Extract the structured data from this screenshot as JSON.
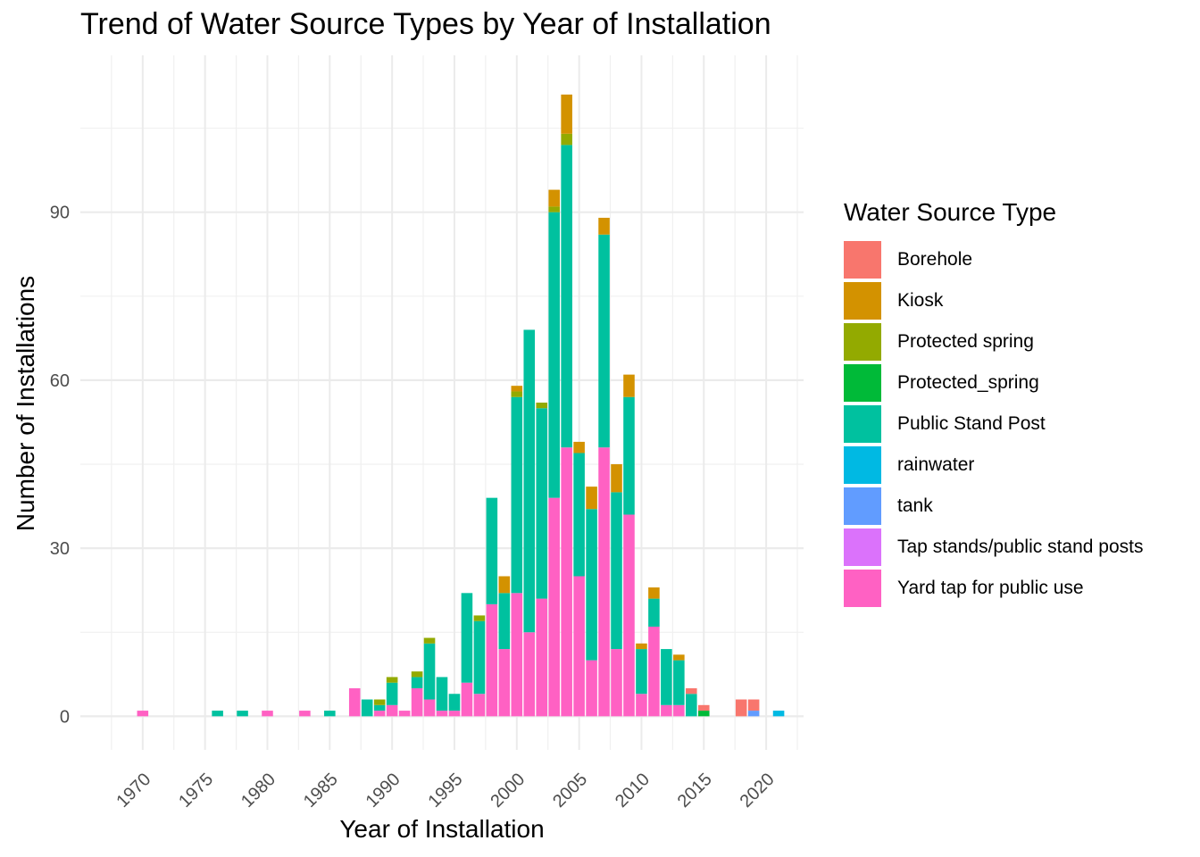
{
  "chart_data": {
    "type": "bar",
    "stacked": true,
    "title": "Trend of Water Source Types by Year of Installation",
    "xlabel": "Year of Installation",
    "ylabel": "Number of Installations",
    "xlim": [
      1965,
      2023
    ],
    "ylim": [
      -6,
      118
    ],
    "x_ticks": [
      1970,
      1975,
      1980,
      1985,
      1990,
      1995,
      2000,
      2005,
      2010,
      2015,
      2020
    ],
    "y_ticks": [
      0,
      30,
      60,
      90
    ],
    "grid": true,
    "legend": {
      "title": "Water Source Type",
      "position": "right"
    },
    "series": [
      {
        "name": "Borehole",
        "color": "#F8766D",
        "points": [
          [
            2014,
            1
          ],
          [
            2015,
            1
          ],
          [
            2018,
            3
          ],
          [
            2019,
            2
          ]
        ]
      },
      {
        "name": "Kiosk",
        "color": "#D39200",
        "points": [
          [
            1999,
            3
          ],
          [
            2000,
            1
          ],
          [
            2003,
            3
          ],
          [
            2004,
            7
          ],
          [
            2005,
            2
          ],
          [
            2006,
            4
          ],
          [
            2007,
            3
          ],
          [
            2008,
            5
          ],
          [
            2009,
            4
          ],
          [
            2011,
            2
          ],
          [
            2010,
            1
          ],
          [
            2013,
            1
          ]
        ]
      },
      {
        "name": "Protected spring",
        "color": "#93AA00",
        "points": [
          [
            1989,
            1
          ],
          [
            1990,
            1
          ],
          [
            1992,
            1
          ],
          [
            1993,
            1
          ],
          [
            1994,
            0
          ],
          [
            1997,
            1
          ],
          [
            1999,
            0
          ],
          [
            2000,
            1
          ],
          [
            2002,
            1
          ],
          [
            2003,
            1
          ],
          [
            2004,
            2
          ],
          [
            2008,
            0
          ]
        ]
      },
      {
        "name": "Protected_spring",
        "color": "#00BA38",
        "points": [
          [
            2015,
            1
          ]
        ]
      },
      {
        "name": "Public Stand Post",
        "color": "#00C19F",
        "points": [
          [
            1976,
            1
          ],
          [
            1978,
            1
          ],
          [
            1985,
            1
          ],
          [
            1988,
            3
          ],
          [
            1989,
            1
          ],
          [
            1990,
            4
          ],
          [
            1992,
            2
          ],
          [
            1993,
            10
          ],
          [
            1994,
            6
          ],
          [
            1995,
            3
          ],
          [
            1996,
            16
          ],
          [
            1997,
            13
          ],
          [
            1998,
            19
          ],
          [
            1999,
            10
          ],
          [
            2000,
            35
          ],
          [
            2001,
            54
          ],
          [
            2002,
            34
          ],
          [
            2003,
            51
          ],
          [
            2004,
            54
          ],
          [
            2005,
            22
          ],
          [
            2006,
            27
          ],
          [
            2007,
            38
          ],
          [
            2008,
            28
          ],
          [
            2009,
            21
          ],
          [
            2010,
            8
          ],
          [
            2011,
            5
          ],
          [
            2012,
            10
          ],
          [
            2013,
            8
          ],
          [
            2014,
            4
          ]
        ]
      },
      {
        "name": "rainwater",
        "color": "#00B9E3",
        "points": [
          [
            2021,
            1
          ]
        ]
      },
      {
        "name": "tank",
        "color": "#619CFF",
        "points": [
          [
            2019,
            1
          ]
        ]
      },
      {
        "name": "Tap stands/public stand posts",
        "color": "#DB72FB",
        "points": []
      },
      {
        "name": "Yard tap for public use",
        "color": "#FF61C3",
        "points": [
          [
            1970,
            1
          ],
          [
            1980,
            1
          ],
          [
            1983,
            1
          ],
          [
            1987,
            5
          ],
          [
            1989,
            1
          ],
          [
            1990,
            2
          ],
          [
            1991,
            1
          ],
          [
            1992,
            5
          ],
          [
            1993,
            3
          ],
          [
            1994,
            1
          ],
          [
            1995,
            1
          ],
          [
            1996,
            6
          ],
          [
            1997,
            4
          ],
          [
            1998,
            20
          ],
          [
            1999,
            12
          ],
          [
            2000,
            22
          ],
          [
            2001,
            15
          ],
          [
            2002,
            21
          ],
          [
            2003,
            39
          ],
          [
            2004,
            48
          ],
          [
            2005,
            25
          ],
          [
            2006,
            10
          ],
          [
            2007,
            48
          ],
          [
            2008,
            12
          ],
          [
            2009,
            36
          ],
          [
            2010,
            4
          ],
          [
            2011,
            16
          ],
          [
            2012,
            2
          ],
          [
            2013,
            2
          ]
        ]
      }
    ]
  }
}
